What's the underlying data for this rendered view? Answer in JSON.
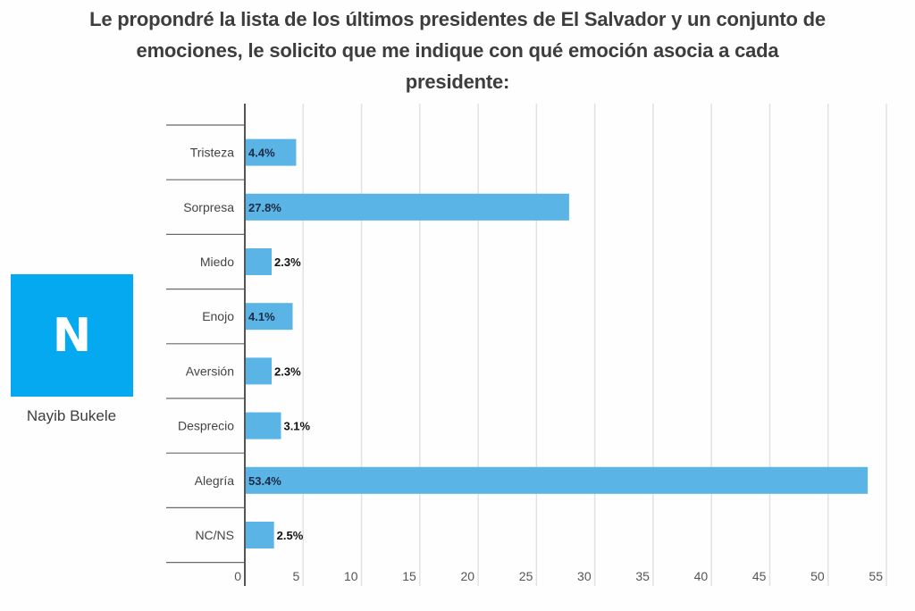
{
  "title_lines": [
    "Le propondré la lista de los últimos presidentes de El Salvador y un conjunto de",
    "emociones, le solicito que me indique con qué emoción asocia a cada",
    "presidente:"
  ],
  "panel": {
    "logo_letter": "N",
    "logo_color": "#04a9ef",
    "name": "Nayib Bukele"
  },
  "chart_data": {
    "type": "bar",
    "orientation": "horizontal",
    "title": "Le propondré la lista de los últimos presidentes de El Salvador y un conjunto de emociones, le solicito que me indique con qué emoción asocia a cada presidente:",
    "categories": [
      "Tristeza",
      "Sorpresa",
      "Miedo",
      "Enojo",
      "Aversión",
      "Desprecio",
      "Alegría",
      "NC/NS"
    ],
    "values": [
      4.4,
      27.8,
      2.3,
      4.1,
      2.3,
      3.1,
      53.4,
      2.5
    ],
    "value_labels": [
      "4.4%",
      "27.8%",
      "2.3%",
      "4.1%",
      "2.3%",
      "3.1%",
      "53.4%",
      "2.5%"
    ],
    "xlabel": "",
    "ylabel": "",
    "xlim": [
      0,
      55
    ],
    "xticks": [
      0,
      5,
      10,
      15,
      20,
      25,
      30,
      35,
      40,
      45,
      50,
      55
    ],
    "grid": true,
    "legend": "none",
    "bar_color": "#5ab4e5",
    "label_inside_color": "#1d2a44",
    "label_outside_color": "#111111"
  }
}
